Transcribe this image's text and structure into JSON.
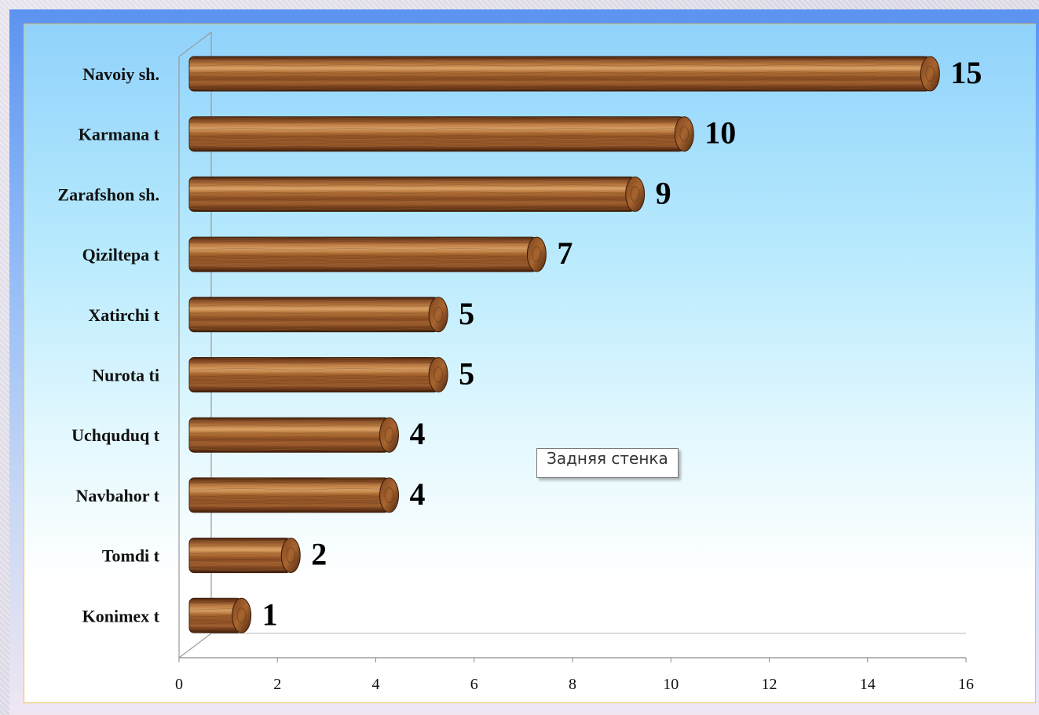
{
  "chart_data": {
    "type": "bar",
    "orientation": "horizontal",
    "categories": [
      "Navoiy sh.",
      "Karmana t",
      "Zarafshon sh.",
      "Qiziltepa t",
      "Xatirchi t",
      "Nurota ti",
      "Uchquduq t",
      "Navbahor t",
      "Tomdi t",
      "Konimex t"
    ],
    "values": [
      15,
      10,
      9,
      7,
      5,
      5,
      4,
      4,
      2,
      1
    ],
    "data_labels": [
      "15",
      "10",
      "9",
      "7",
      "5",
      "5",
      "4",
      "4",
      "2",
      "1"
    ],
    "x_ticks": [
      "0",
      "2",
      "4",
      "6",
      "8",
      "10",
      "12",
      "14",
      "16"
    ],
    "xlim": [
      0,
      16
    ],
    "title": "",
    "xlabel": "",
    "ylabel": "",
    "grid": false,
    "legend": "none",
    "style": "3d-cylinder-wood-texture",
    "bar_color": "#8b5128"
  },
  "tooltip": {
    "text": "Задняя стенка"
  },
  "colors": {
    "bar_dark": "#5a2e12",
    "bar_mid": "#9b5a2c",
    "bar_light": "#d49a62",
    "plot_bg_top": "#90d2fb",
    "plot_bg_bottom": "#ffffff",
    "chart_border": "#e9c55a"
  }
}
